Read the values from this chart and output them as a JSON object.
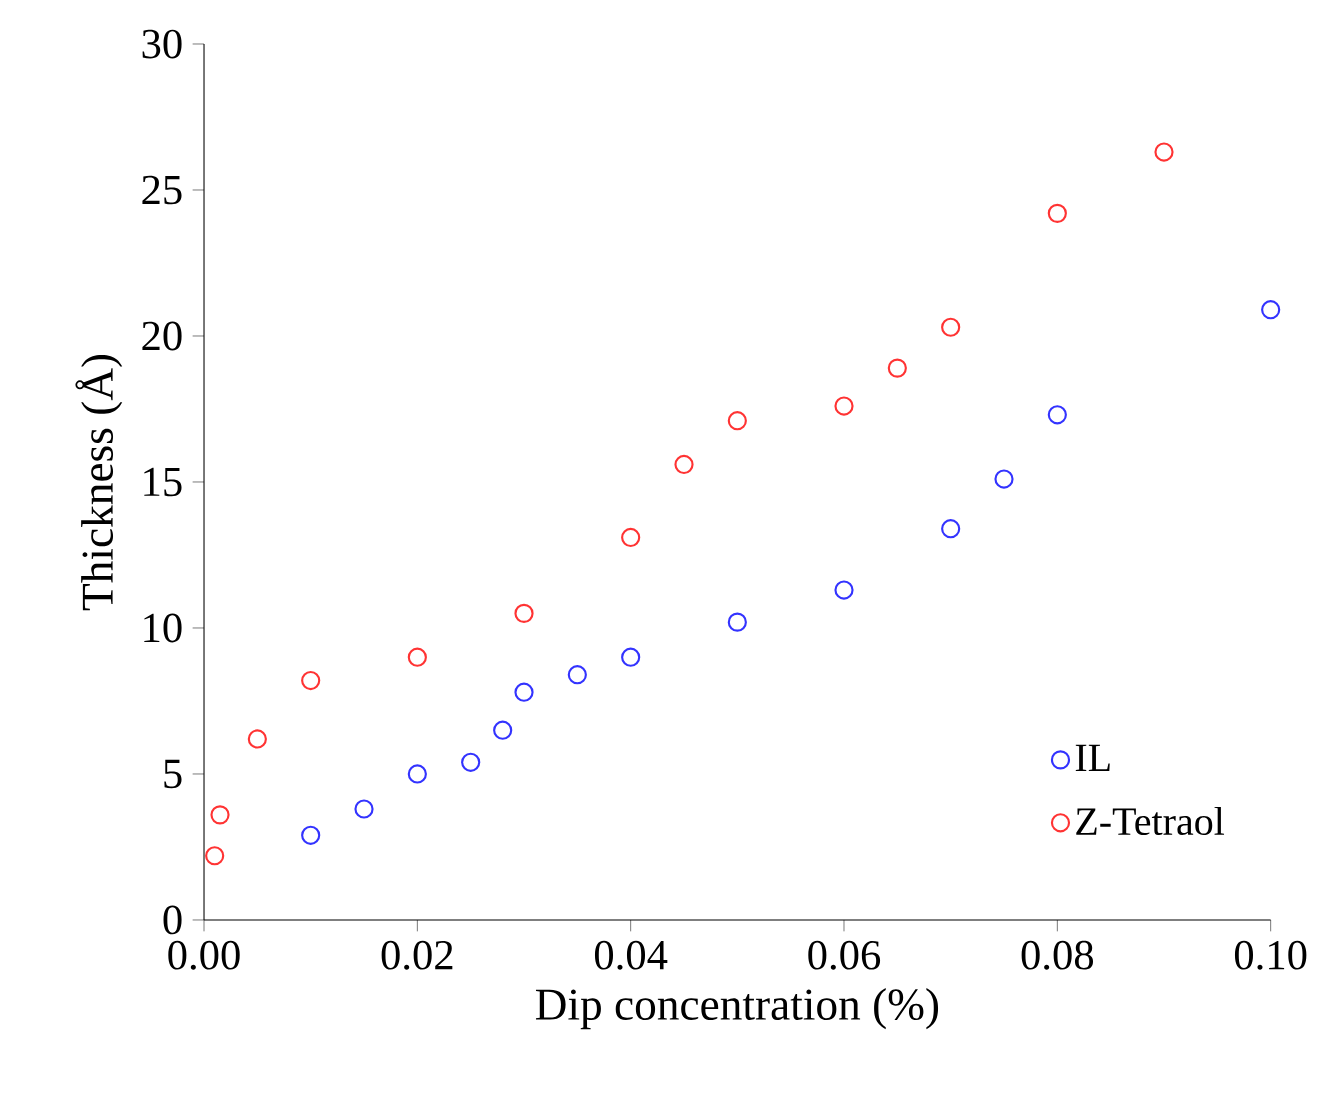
{
  "chart_data": {
    "type": "scatter",
    "xlabel": "Dip concentration (%)",
    "ylabel": "Thickness (Å)",
    "xlim": [
      0,
      0.1
    ],
    "ylim": [
      0,
      30
    ],
    "xticks": [
      {
        "value": 0,
        "label": "0.00"
      },
      {
        "value": 0.02,
        "label": "0.02"
      },
      {
        "value": 0.04,
        "label": "0.04"
      },
      {
        "value": 0.06,
        "label": "0.06"
      },
      {
        "value": 0.08,
        "label": "0.08"
      },
      {
        "value": 0.1,
        "label": "0.10"
      }
    ],
    "yticks": [
      0,
      5,
      10,
      15,
      20,
      25,
      30
    ],
    "grid": false,
    "legend": "bottom right",
    "marker": "circle",
    "series": [
      {
        "name": "IL",
        "color": "#3333ff",
        "x": [
          0.01,
          0.015,
          0.02,
          0.025,
          0.028,
          0.03,
          0.035,
          0.04,
          0.05,
          0.06,
          0.07,
          0.075,
          0.08,
          0.1
        ],
        "values": [
          2.9,
          3.8,
          5.0,
          5.4,
          6.5,
          7.8,
          8.4,
          9.0,
          10.2,
          11.3,
          13.4,
          15.1,
          17.3,
          20.9
        ]
      },
      {
        "name": "Z-Tetraol",
        "color": "#ff3333",
        "x": [
          0.001,
          0.0015,
          0.005,
          0.01,
          0.02,
          0.03,
          0.04,
          0.045,
          0.05,
          0.06,
          0.065,
          0.07,
          0.08,
          0.09
        ],
        "values": [
          2.2,
          3.6,
          6.2,
          8.2,
          9.0,
          10.5,
          13.1,
          15.6,
          17.1,
          17.6,
          18.9,
          20.3,
          24.2,
          26.3
        ]
      }
    ]
  }
}
